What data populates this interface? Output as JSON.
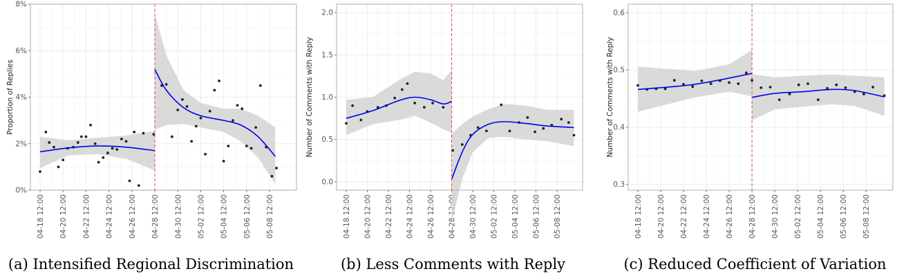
{
  "colors": {
    "fit": "#0000ee",
    "band": "#d3d3d3",
    "points": "#222222",
    "cutoff": "#e8433f",
    "grid": "#ececec"
  },
  "x_ticks": [
    "04-18 12:00",
    "04-20 12:00",
    "04-22 12:00",
    "04-24 12:00",
    "04-26 12:00",
    "04-28 12:00",
    "04-30 12:00",
    "05-02 12:00",
    "05-04 12:00",
    "05-06 12:00",
    "05-08 12:00"
  ],
  "chart_data": [
    {
      "type": "scatter",
      "caption": "(a) Intensified Regional Discrimination",
      "ylabel": "Proportion of Replies",
      "xlabel": "",
      "x_range": [
        0,
        21.5
      ],
      "cutoff_x": 10,
      "ylim": [
        0,
        8
      ],
      "y_ticks": [
        0,
        2,
        4,
        6,
        8
      ],
      "y_tick_labels": [
        "0%",
        "2%",
        "4%",
        "6%",
        "8%"
      ],
      "points": [
        [
          0,
          0.8
        ],
        [
          0.5,
          2.5
        ],
        [
          0.8,
          2.05
        ],
        [
          1.2,
          1.85
        ],
        [
          1.6,
          1.0
        ],
        [
          2.0,
          1.3
        ],
        [
          2.4,
          1.8
        ],
        [
          2.9,
          1.85
        ],
        [
          3.3,
          2.05
        ],
        [
          3.6,
          2.3
        ],
        [
          4.0,
          2.3
        ],
        [
          4.4,
          2.8
        ],
        [
          4.8,
          2.0
        ],
        [
          5.1,
          1.2
        ],
        [
          5.5,
          1.4
        ],
        [
          5.9,
          1.6
        ],
        [
          6.3,
          1.8
        ],
        [
          6.7,
          1.75
        ],
        [
          7.1,
          2.2
        ],
        [
          7.5,
          2.1
        ],
        [
          7.8,
          0.4
        ],
        [
          8.2,
          2.5
        ],
        [
          8.6,
          0.2
        ],
        [
          9.0,
          2.45
        ],
        [
          9.9,
          2.4
        ],
        [
          10.6,
          4.5
        ],
        [
          11.0,
          4.55
        ],
        [
          11.5,
          2.3
        ],
        [
          12.0,
          3.45
        ],
        [
          12.4,
          3.9
        ],
        [
          12.8,
          3.6
        ],
        [
          13.2,
          2.1
        ],
        [
          13.6,
          2.75
        ],
        [
          14.0,
          3.1
        ],
        [
          14.4,
          1.55
        ],
        [
          14.8,
          3.4
        ],
        [
          15.2,
          4.3
        ],
        [
          15.6,
          4.7
        ],
        [
          16.0,
          1.25
        ],
        [
          16.4,
          1.9
        ],
        [
          16.8,
          3.0
        ],
        [
          17.2,
          3.65
        ],
        [
          17.6,
          3.5
        ],
        [
          18.0,
          1.9
        ],
        [
          18.4,
          1.8
        ],
        [
          18.8,
          2.7
        ],
        [
          19.2,
          4.5
        ],
        [
          19.7,
          1.85
        ],
        [
          20.2,
          0.6
        ],
        [
          20.6,
          0.95
        ]
      ],
      "fit_pre": [
        [
          0,
          1.65
        ],
        [
          2.5,
          1.82
        ],
        [
          5,
          1.9
        ],
        [
          7.5,
          1.85
        ],
        [
          10,
          1.7
        ]
      ],
      "fit_post": [
        [
          10,
          5.2
        ],
        [
          11,
          4.3
        ],
        [
          12.5,
          3.55
        ],
        [
          14,
          3.2
        ],
        [
          16,
          3.0
        ],
        [
          17.5,
          2.8
        ],
        [
          19,
          2.3
        ],
        [
          20.5,
          1.45
        ]
      ],
      "band_pre_upper": [
        [
          0,
          2.3
        ],
        [
          2.5,
          2.15
        ],
        [
          5,
          2.25
        ],
        [
          7.5,
          2.35
        ],
        [
          10,
          2.55
        ]
      ],
      "band_pre_lower": [
        [
          0,
          0.95
        ],
        [
          2.5,
          1.5
        ],
        [
          5,
          1.55
        ],
        [
          7.5,
          1.35
        ],
        [
          10,
          0.85
        ]
      ],
      "band_post_upper": [
        [
          10,
          7.6
        ],
        [
          11,
          5.8
        ],
        [
          12.5,
          4.3
        ],
        [
          14,
          3.75
        ],
        [
          16,
          3.5
        ],
        [
          17.5,
          3.5
        ],
        [
          19,
          3.2
        ],
        [
          20.5,
          2.7
        ]
      ],
      "band_post_lower": [
        [
          10,
          2.6
        ],
        [
          11,
          2.8
        ],
        [
          12.5,
          2.85
        ],
        [
          14,
          2.7
        ],
        [
          16,
          2.5
        ],
        [
          17.5,
          2.1
        ],
        [
          19,
          1.4
        ],
        [
          20.5,
          0.25
        ]
      ]
    },
    {
      "type": "scatter",
      "caption": "(b) Less Comments with Reply",
      "ylabel": "Number of Comments with Reply",
      "xlabel": "",
      "x_range": [
        0,
        21.5
      ],
      "cutoff_x": 10,
      "ylim": [
        -0.1,
        2.1
      ],
      "y_ticks": [
        0,
        0.5,
        1,
        1.5,
        2
      ],
      "y_tick_labels": [
        "0.0",
        "0.5",
        "1.0",
        "1.5",
        "2.0"
      ],
      "points": [
        [
          0,
          0.69
        ],
        [
          0.6,
          0.9
        ],
        [
          1.4,
          0.73
        ],
        [
          2.0,
          0.83
        ],
        [
          3.0,
          0.88
        ],
        [
          3.8,
          0.9
        ],
        [
          4.6,
          0.99
        ],
        [
          5.3,
          1.09
        ],
        [
          5.8,
          1.16
        ],
        [
          6.5,
          0.93
        ],
        [
          7.4,
          0.88
        ],
        [
          8.2,
          0.93
        ],
        [
          9.2,
          0.88
        ],
        [
          10.1,
          0.37
        ],
        [
          11.0,
          0.44
        ],
        [
          11.8,
          0.55
        ],
        [
          12.5,
          0.64
        ],
        [
          13.3,
          0.6
        ],
        [
          14.7,
          0.91
        ],
        [
          15.5,
          0.6
        ],
        [
          16.4,
          0.7
        ],
        [
          17.2,
          0.76
        ],
        [
          17.9,
          0.59
        ],
        [
          18.7,
          0.63
        ],
        [
          19.5,
          0.67
        ],
        [
          20.4,
          0.74
        ],
        [
          21.1,
          0.7
        ],
        [
          21.6,
          0.55
        ]
      ],
      "fit_pre": [
        [
          0,
          0.75
        ],
        [
          2.5,
          0.84
        ],
        [
          5,
          0.96
        ],
        [
          6.5,
          1.0
        ],
        [
          8,
          0.97
        ],
        [
          9.2,
          0.92
        ],
        [
          10,
          0.95
        ]
      ],
      "fit_post": [
        [
          10,
          0.03
        ],
        [
          11,
          0.35
        ],
        [
          12,
          0.56
        ],
        [
          13.5,
          0.68
        ],
        [
          15,
          0.71
        ],
        [
          17,
          0.69
        ],
        [
          19,
          0.66
        ],
        [
          21.6,
          0.64
        ]
      ],
      "band_pre_upper": [
        [
          0,
          0.97
        ],
        [
          2.5,
          1.0
        ],
        [
          5,
          1.2
        ],
        [
          6.5,
          1.3
        ],
        [
          8,
          1.28
        ],
        [
          9.2,
          1.2
        ],
        [
          10,
          1.32
        ]
      ],
      "band_pre_lower": [
        [
          0,
          0.55
        ],
        [
          2.5,
          0.68
        ],
        [
          5,
          0.73
        ],
        [
          6.5,
          0.78
        ],
        [
          8,
          0.7
        ],
        [
          9.2,
          0.62
        ],
        [
          10,
          0.58
        ]
      ],
      "band_post_upper": [
        [
          10,
          0.57
        ],
        [
          11,
          0.68
        ],
        [
          12,
          0.77
        ],
        [
          13.5,
          0.86
        ],
        [
          15,
          0.92
        ],
        [
          17,
          0.9
        ],
        [
          19,
          0.85
        ],
        [
          21.6,
          0.85
        ]
      ],
      "band_post_lower": [
        [
          10,
          -0.48
        ],
        [
          11,
          0.03
        ],
        [
          12,
          0.35
        ],
        [
          13.5,
          0.52
        ],
        [
          15,
          0.53
        ],
        [
          17,
          0.5
        ],
        [
          19,
          0.48
        ],
        [
          21.6,
          0.42
        ]
      ]
    },
    {
      "type": "scatter",
      "caption": "(c) Reduced Coefficient of Variation",
      "ylabel": "Number of Comments with Reply",
      "xlabel": "",
      "x_range": [
        0,
        21.5
      ],
      "cutoff_x": 10,
      "ylim": [
        0.29,
        0.615
      ],
      "y_ticks": [
        0.3,
        0.4,
        0.5,
        0.6
      ],
      "y_tick_labels": [
        "0.3",
        "0.4",
        "0.5",
        "0.6"
      ],
      "points": [
        [
          0,
          0.473
        ],
        [
          0.8,
          0.466
        ],
        [
          1.6,
          0.467
        ],
        [
          2.4,
          0.467
        ],
        [
          3.2,
          0.482
        ],
        [
          4.0,
          0.475
        ],
        [
          4.8,
          0.471
        ],
        [
          5.6,
          0.481
        ],
        [
          6.4,
          0.476
        ],
        [
          7.2,
          0.481
        ],
        [
          8.0,
          0.478
        ],
        [
          8.8,
          0.476
        ],
        [
          9.5,
          0.495
        ],
        [
          10.0,
          0.482
        ],
        [
          10.8,
          0.469
        ],
        [
          11.6,
          0.47
        ],
        [
          12.4,
          0.448
        ],
        [
          13.3,
          0.458
        ],
        [
          14.1,
          0.474
        ],
        [
          14.9,
          0.476
        ],
        [
          15.8,
          0.448
        ],
        [
          16.6,
          0.468
        ],
        [
          17.4,
          0.474
        ],
        [
          18.2,
          0.469
        ],
        [
          19.0,
          0.462
        ],
        [
          19.8,
          0.458
        ],
        [
          20.6,
          0.47
        ],
        [
          21.6,
          0.455
        ]
      ],
      "fit_pre": [
        [
          0,
          0.466
        ],
        [
          5,
          0.475
        ],
        [
          10,
          0.494
        ]
      ],
      "fit_post": [
        [
          10,
          0.452
        ],
        [
          12,
          0.459
        ],
        [
          14.5,
          0.462
        ],
        [
          17,
          0.466
        ],
        [
          19,
          0.464
        ],
        [
          21.6,
          0.453
        ]
      ],
      "band_pre_upper": [
        [
          0,
          0.506
        ],
        [
          5,
          0.498
        ],
        [
          8,
          0.51
        ],
        [
          10,
          0.535
        ]
      ],
      "band_pre_lower": [
        [
          0,
          0.427
        ],
        [
          5,
          0.452
        ],
        [
          8,
          0.462
        ],
        [
          10,
          0.454
        ]
      ],
      "band_post_upper": [
        [
          10,
          0.493
        ],
        [
          12,
          0.487
        ],
        [
          14.5,
          0.49
        ],
        [
          17,
          0.492
        ],
        [
          19,
          0.49
        ],
        [
          21.6,
          0.487
        ]
      ],
      "band_post_lower": [
        [
          10,
          0.412
        ],
        [
          12,
          0.431
        ],
        [
          14.5,
          0.436
        ],
        [
          17,
          0.44
        ],
        [
          19,
          0.437
        ],
        [
          21.6,
          0.42
        ]
      ]
    }
  ]
}
